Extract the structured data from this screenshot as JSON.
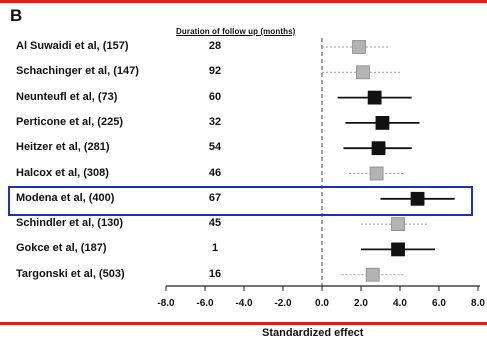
{
  "figure": {
    "panel_letter": "B",
    "duration_header": "Duration of follow up (months)",
    "colors": {
      "rule": "#e31b1b",
      "highlight": "#1f2fb8",
      "marker_dark": "#111111",
      "marker_light": "#b3b3b3"
    }
  },
  "chart_data": {
    "type": "forest",
    "xlabel": "Standardized effect",
    "xlim": [
      -8.0,
      8.0
    ],
    "xticks": [
      "-8.0",
      "-6.0",
      "-4.0",
      "-2.0",
      "0.0",
      "2.0",
      "4.0",
      "6.0",
      "8.0"
    ],
    "tick_values": [
      -8,
      -6,
      -4,
      -2,
      0,
      2,
      4,
      6,
      8
    ],
    "reference_line": 0.0,
    "highlighted_study": "Modena et al, (400)",
    "studies": [
      {
        "label": "Al Suwaidi et al, (157)",
        "duration": "28",
        "effect": 1.9,
        "ci": [
          0.0,
          3.5
        ],
        "style": "light"
      },
      {
        "label": "Schachinger et al, (147)",
        "duration": "92",
        "effect": 2.1,
        "ci": [
          0.0,
          4.0
        ],
        "style": "light"
      },
      {
        "label": "Neunteufl et al, (73)",
        "duration": "60",
        "effect": 2.7,
        "ci": [
          0.8,
          4.6
        ],
        "style": "dark"
      },
      {
        "label": "Perticone et al, (225)",
        "duration": "32",
        "effect": 3.1,
        "ci": [
          1.2,
          5.0
        ],
        "style": "dark"
      },
      {
        "label": "Heitzer et al, (281)",
        "duration": "54",
        "effect": 2.9,
        "ci": [
          1.1,
          4.6
        ],
        "style": "dark"
      },
      {
        "label": "Halcox et al, (308)",
        "duration": "46",
        "effect": 2.8,
        "ci": [
          1.4,
          4.2
        ],
        "style": "light"
      },
      {
        "label": "Modena et al, (400)",
        "duration": "67",
        "effect": 4.9,
        "ci": [
          3.0,
          6.8
        ],
        "style": "dark"
      },
      {
        "label": "Schindler et al, (130)",
        "duration": "45",
        "effect": 3.9,
        "ci": [
          2.0,
          5.5
        ],
        "style": "light"
      },
      {
        "label": "Gokce et al, (187)",
        "duration": "1",
        "effect": 3.9,
        "ci": [
          2.0,
          5.8
        ],
        "style": "dark"
      },
      {
        "label": "Targonski et al, (503)",
        "duration": "16",
        "effect": 2.6,
        "ci": [
          1.0,
          4.2
        ],
        "style": "light"
      }
    ]
  }
}
